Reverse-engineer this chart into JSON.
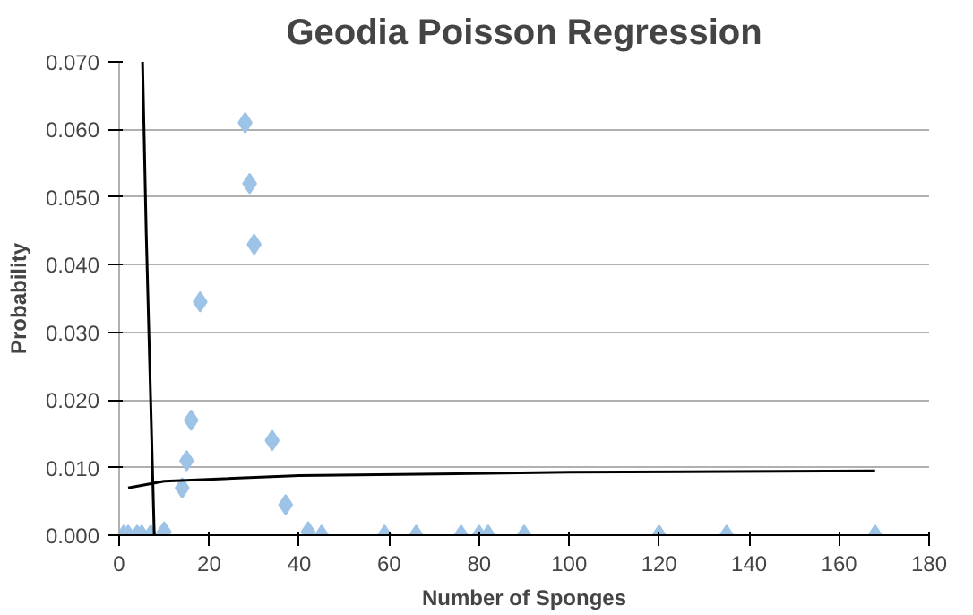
{
  "chart_data": {
    "type": "scatter",
    "title": "Geodia Poisson Regression",
    "xlabel": "Number of Sponges",
    "ylabel": "Probability",
    "xlim": [
      0,
      180
    ],
    "ylim": [
      0,
      0.07
    ],
    "xticks": [
      0,
      20,
      40,
      60,
      80,
      100,
      120,
      140,
      160,
      180
    ],
    "yticks": [
      {
        "value": 0,
        "label": "0.000"
      },
      {
        "value": 0.01,
        "label": "0.010"
      },
      {
        "value": 0.02,
        "label": "0.020"
      },
      {
        "value": 0.03,
        "label": "0.030"
      },
      {
        "value": 0.04,
        "label": "0.040"
      },
      {
        "value": 0.05,
        "label": "0.050"
      },
      {
        "value": 0.06,
        "label": "0.060"
      },
      {
        "value": 0.07,
        "label": "0.070"
      }
    ],
    "grid": "y",
    "marker": "diamond",
    "series": [
      {
        "color": "#9dc3e6",
        "x": [
          1,
          2,
          4,
          5,
          7,
          10,
          14,
          15,
          16,
          18,
          28,
          29,
          30,
          34,
          37,
          42,
          45,
          59,
          66,
          76,
          80,
          82,
          90,
          120,
          135,
          168
        ],
        "values": [
          0,
          0,
          0,
          0,
          0,
          0.0005,
          0.007,
          0.011,
          0.017,
          0.0345,
          0.061,
          0.052,
          0.043,
          0.014,
          0.0045,
          0.0005,
          0,
          0,
          0,
          0,
          0,
          0,
          0,
          0,
          0,
          0
        ]
      },
      {
        "type": "line",
        "color": "#000000",
        "marker": "none",
        "x": [
          5.2,
          6,
          7,
          7.8
        ],
        "values": [
          0.07,
          0.045,
          0.02,
          0
        ]
      },
      {
        "type": "line",
        "color": "#000000",
        "marker": "none",
        "x": [
          2,
          10,
          40,
          100,
          168
        ],
        "values": [
          0.007,
          0.008,
          0.0088,
          0.0093,
          0.0095
        ]
      }
    ]
  }
}
